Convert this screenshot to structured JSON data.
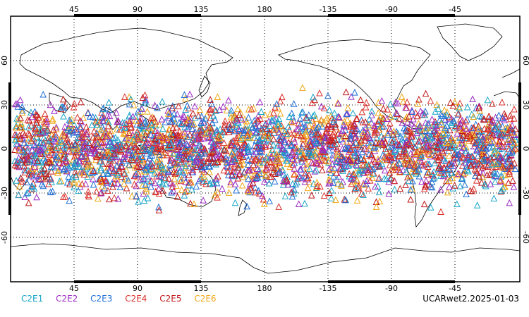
{
  "map": {
    "projection": "plate-carree",
    "center_longitude": 180,
    "lon_range": [
      0,
      360
    ],
    "lat_range": [
      -90,
      90
    ],
    "gridlines": true,
    "top_lon_ticks": [
      "45",
      "90",
      "135",
      "180",
      "-135",
      "-90",
      "-45"
    ],
    "bottom_lon_ticks": [
      "45",
      "90",
      "135",
      "180",
      "-135",
      "-90",
      "-45"
    ],
    "left_lat_ticks": [
      "60",
      "30",
      "0",
      "-30",
      "-60"
    ],
    "right_lat_ticks": [
      "60",
      "30",
      "0",
      "-30",
      "-60"
    ],
    "observation_lat_band": [
      -45,
      45
    ],
    "marker": "triangle-outline"
  },
  "legend": {
    "items": [
      {
        "label": "C2E1",
        "color": "#1aa6c7"
      },
      {
        "label": "C2E2",
        "color": "#9b2bc2"
      },
      {
        "label": "C2E3",
        "color": "#1f6fd6"
      },
      {
        "label": "C2E4",
        "color": "#d9322c"
      },
      {
        "label": "C2E5",
        "color": "#c01818"
      },
      {
        "label": "C2E6",
        "color": "#f0a818"
      }
    ]
  },
  "stamp": "UCARwet2.2025-01-03"
}
